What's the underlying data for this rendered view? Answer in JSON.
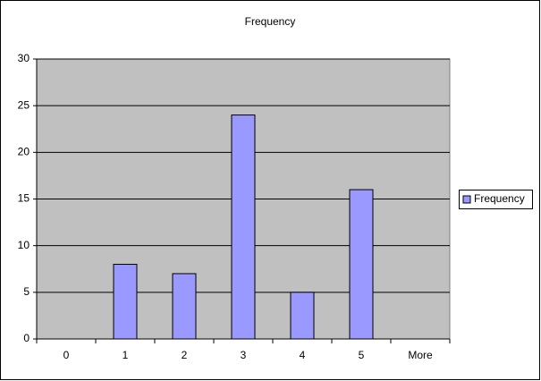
{
  "chart_data": {
    "type": "bar",
    "title": "Frequency",
    "categories": [
      "0",
      "1",
      "2",
      "3",
      "4",
      "5",
      "More"
    ],
    "series": [
      {
        "name": "Frequency",
        "color": "#9999ff",
        "values": [
          0,
          8,
          7,
          24,
          5,
          16,
          0
        ]
      }
    ],
    "ylim": [
      0,
      30
    ],
    "yticks": [
      0,
      5,
      10,
      15,
      20,
      25,
      30
    ],
    "grid": true,
    "legend": "right"
  }
}
